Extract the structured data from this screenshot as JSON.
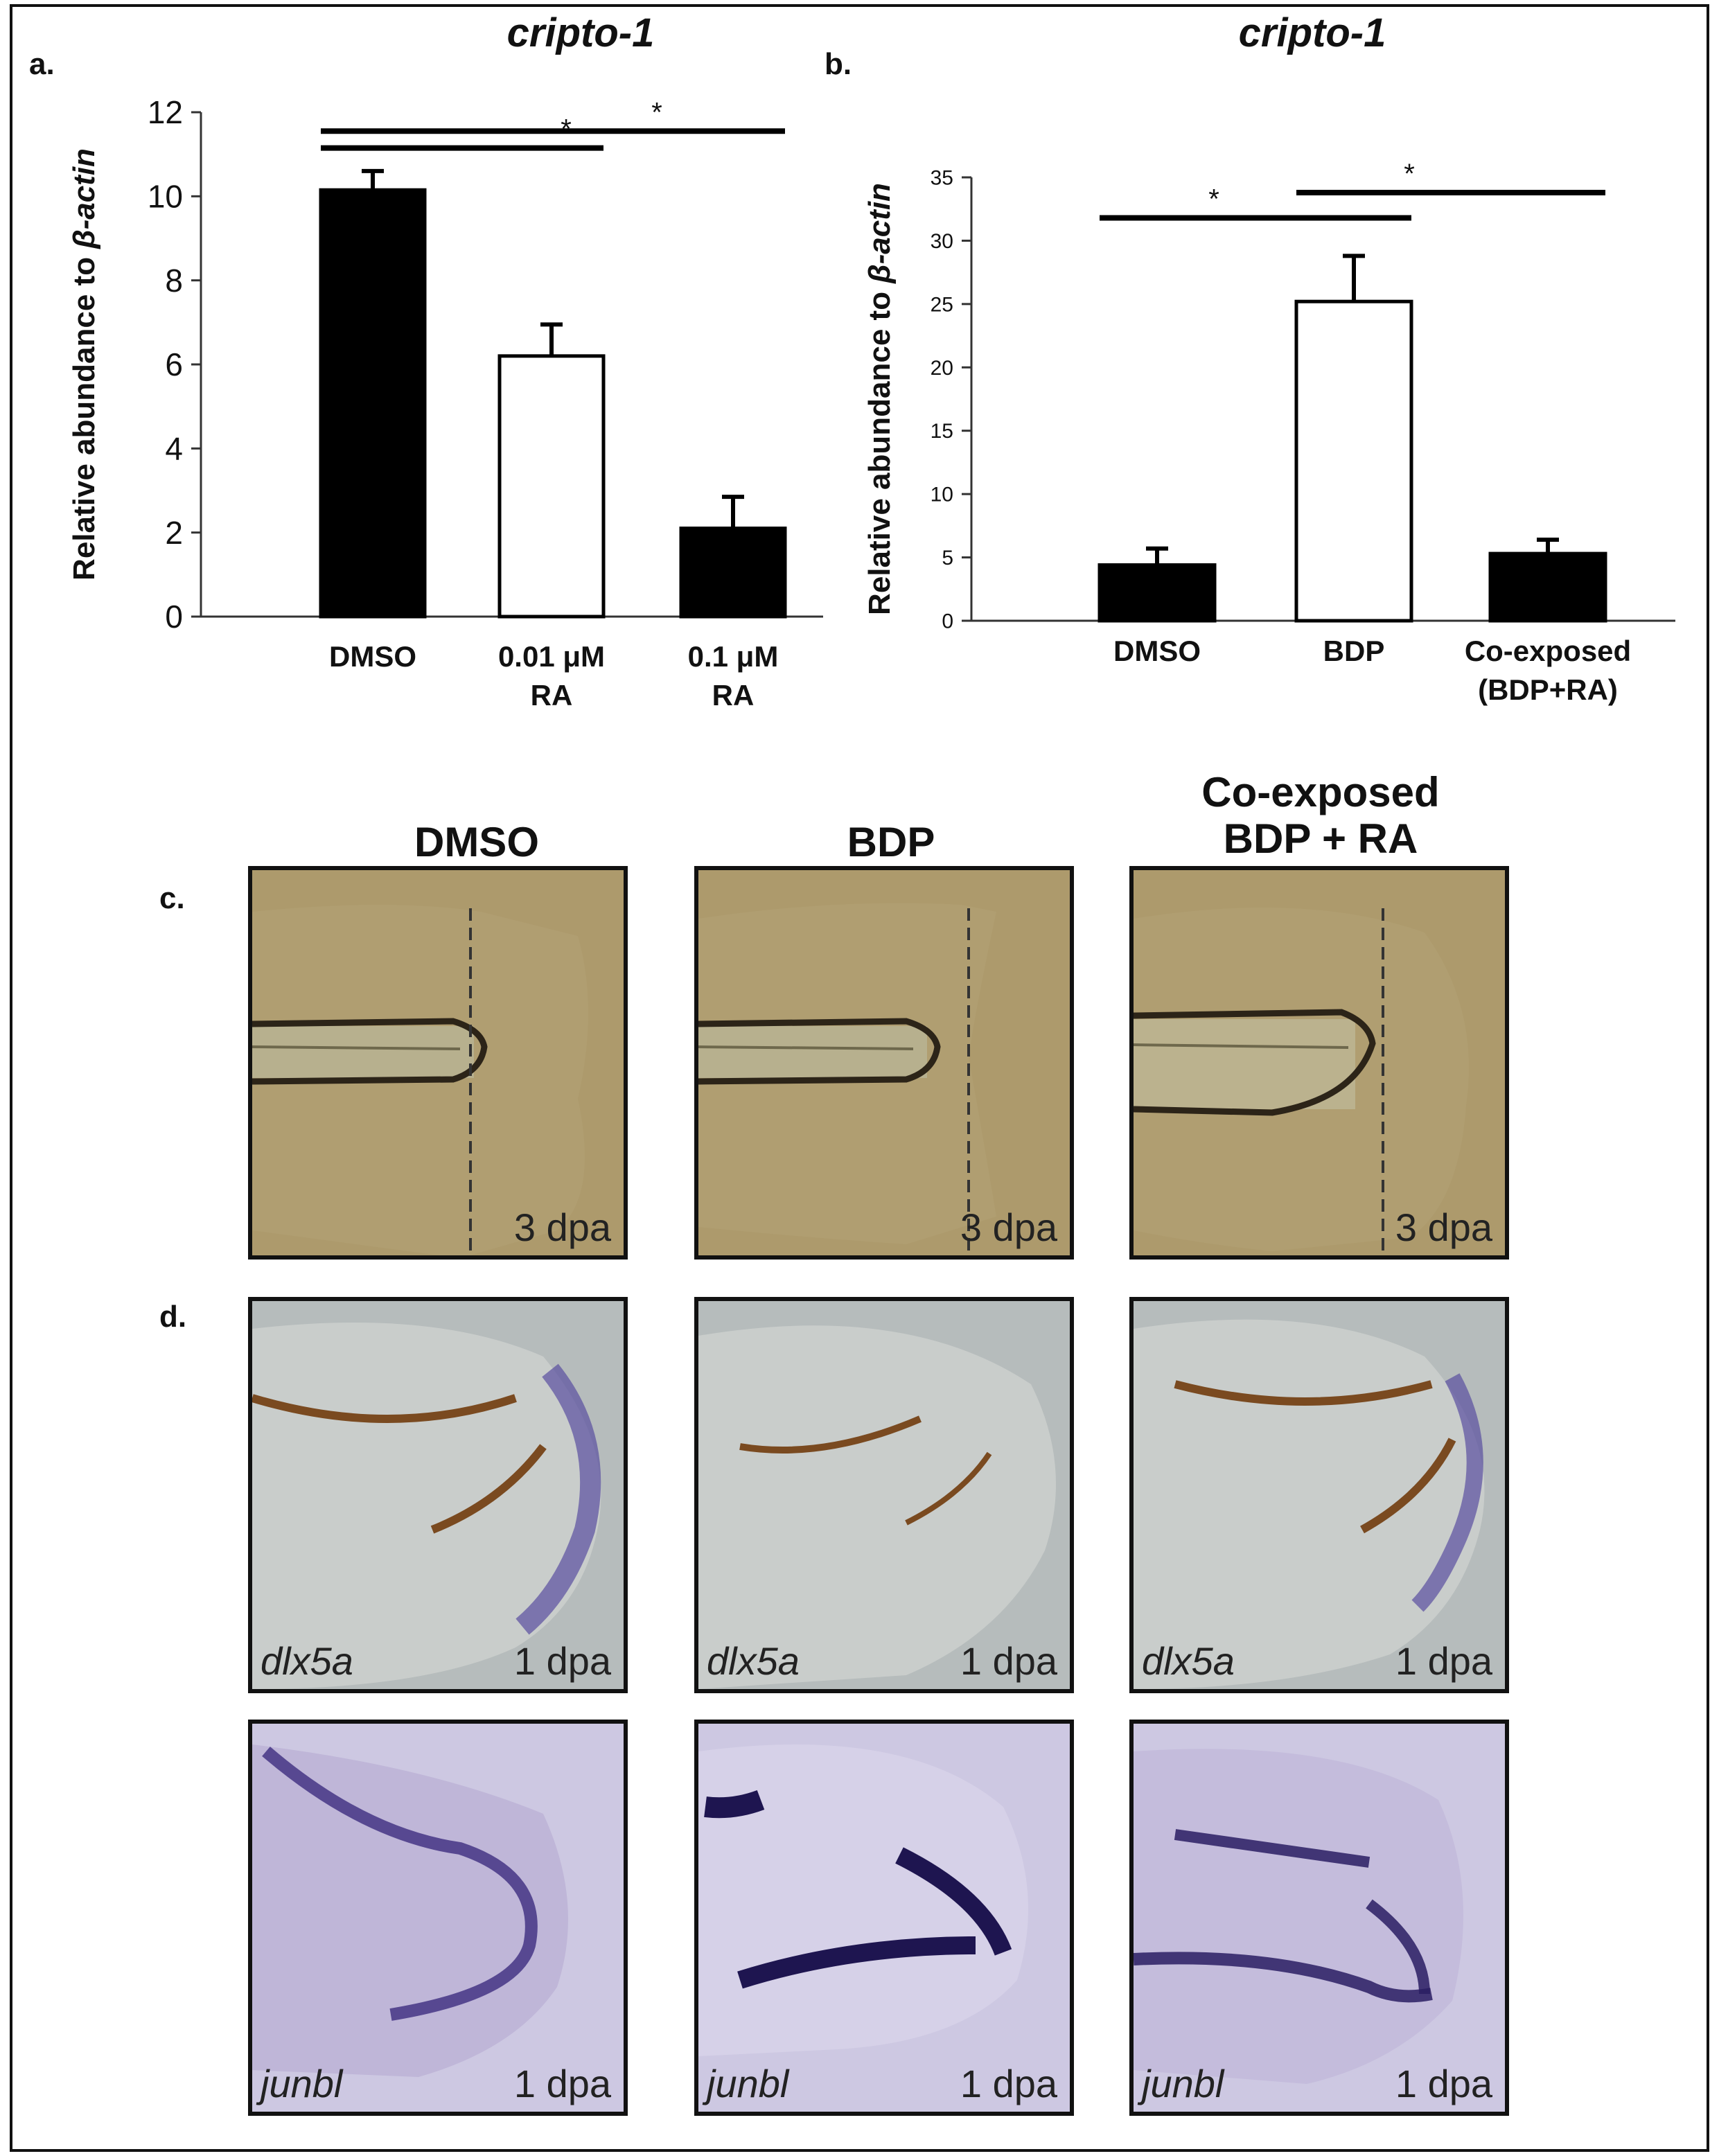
{
  "panels": {
    "a_label": "a.",
    "b_label": "b.",
    "c_label": "c.",
    "d_label": "d."
  },
  "chart_data": [
    {
      "type": "bar",
      "panel": "a",
      "title": "cripto-1",
      "ylabel_prefix": "Relative abundance to ",
      "ylabel_italic": "β-actin",
      "categories": [
        [
          "DMSO"
        ],
        [
          "0.01 μM",
          "RA"
        ],
        [
          "0.1 μM",
          "RA"
        ]
      ],
      "values": [
        10.15,
        6.2,
        2.1
      ],
      "errors": [
        0.45,
        0.75,
        0.75
      ],
      "bar_fill": [
        "#000000",
        "#ffffff",
        "#000000"
      ],
      "ylim": [
        0,
        12
      ],
      "yticks": [
        0,
        2,
        4,
        6,
        8,
        10,
        12
      ],
      "significance": [
        {
          "from": 0,
          "to": 2,
          "label": "*",
          "level": 11.55
        },
        {
          "from": 0,
          "to": 1,
          "label": "*",
          "level": 11.15
        }
      ]
    },
    {
      "type": "bar",
      "panel": "b",
      "title": "cripto-1",
      "ylabel_prefix": "Relative abundance to ",
      "ylabel_italic": "β-actin",
      "categories": [
        [
          "DMSO"
        ],
        [
          "BDP"
        ],
        [
          "Co-exposed",
          "(BDP+RA)"
        ]
      ],
      "values": [
        4.4,
        25.2,
        5.3
      ],
      "errors": [
        1.3,
        3.6,
        1.1
      ],
      "bar_fill": [
        "#000000",
        "#ffffff",
        "#000000"
      ],
      "ylim": [
        0,
        35
      ],
      "yticks": [
        0,
        5,
        10,
        15,
        20,
        25,
        30,
        35
      ],
      "significance": [
        {
          "from": 0,
          "to": 1,
          "label": "*",
          "level": 31.8
        },
        {
          "from": 1,
          "to": 2,
          "label": "*",
          "level": 33.8
        }
      ]
    }
  ],
  "columns": [
    "DMSO",
    "BDP",
    "Co-exposed\nBDP  + RA"
  ],
  "row_c": {
    "stage": "3 dpa"
  },
  "row_d1": {
    "gene": "dlx5a",
    "stage": "1 dpa"
  },
  "row_d2": {
    "gene": "junbl",
    "stage": "1 dpa"
  },
  "colors": {
    "row_c_bg": "#ad9a6c",
    "row_d1_bg": "#b6bcbc",
    "row_d2_bg": "#cdc8e2",
    "dlx5a_stain": "#5a4ea0",
    "junbl_stain": "#2a1d63",
    "pigment": "#7a4a20"
  }
}
